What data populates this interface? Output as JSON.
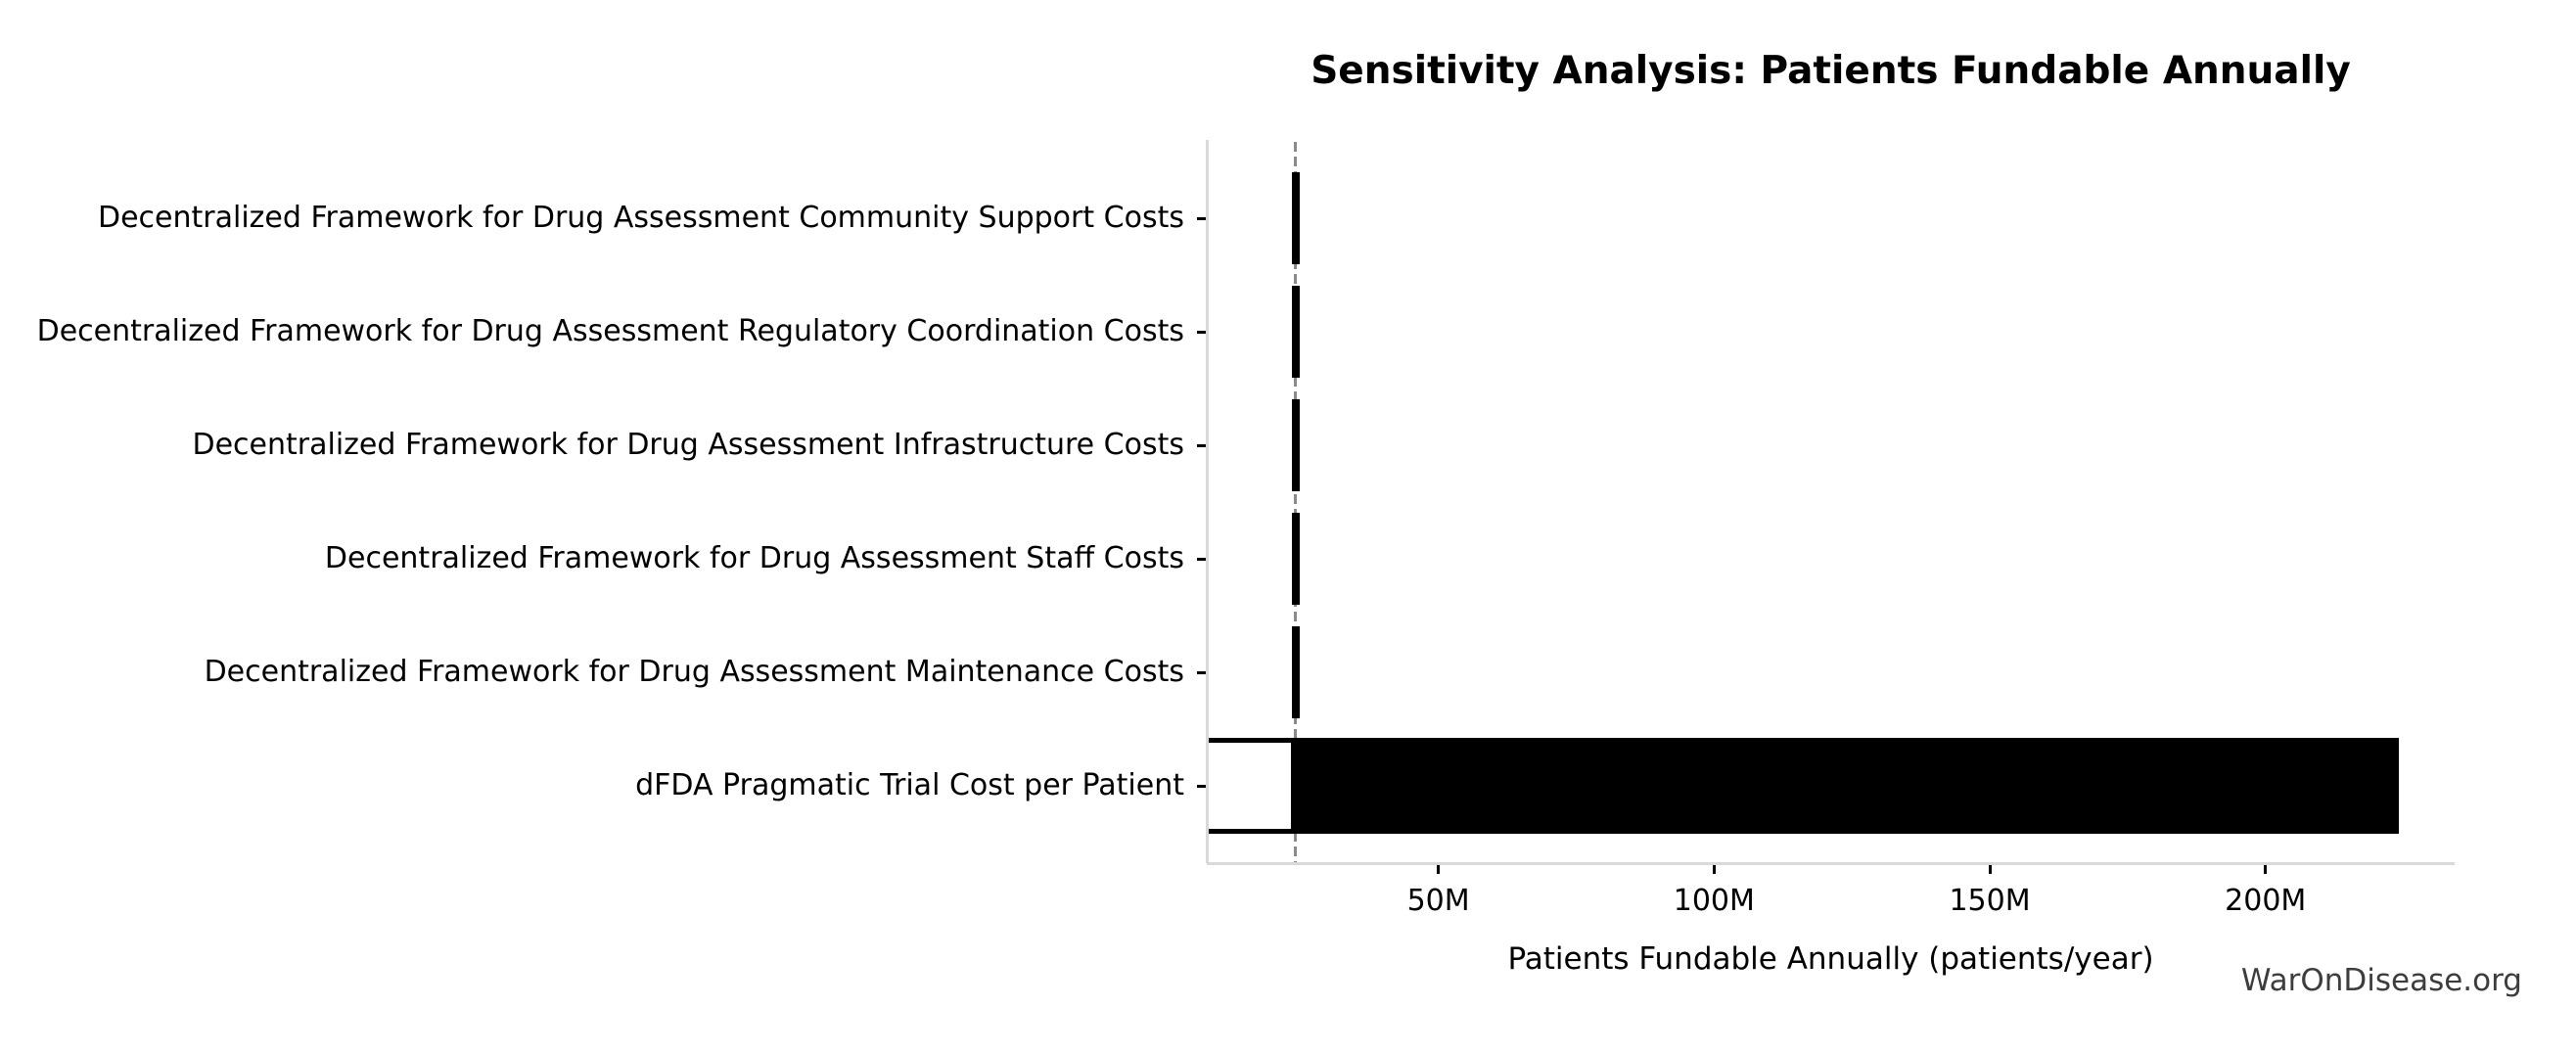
{
  "page": {
    "background": "#ffffff",
    "watermark": "WarOnDisease.org"
  },
  "chart_data": {
    "type": "bar",
    "orientation": "horizontal",
    "subtype": "tornado-sensitivity",
    "title": "Sensitivity Analysis: Patients Fundable Annually",
    "xlabel": "Patients Fundable Annually (patients/year)",
    "ylabel": "",
    "unit": "M",
    "xlim": [
      8.0,
      234.3
    ],
    "baseline": 24.1,
    "grid": false,
    "legend": null,
    "x_ticks": [
      {
        "value": 50,
        "label": "50M"
      },
      {
        "value": 100,
        "label": "100M"
      },
      {
        "value": 150,
        "label": "150M"
      },
      {
        "value": 200,
        "label": "200M"
      }
    ],
    "categories": [
      "Decentralized Framework for Drug Assessment Community Support Costs",
      "Decentralized Framework for Drug Assessment Regulatory Coordination Costs",
      "Decentralized Framework for Drug Assessment Infrastructure Costs",
      "Decentralized Framework for Drug Assessment Staff Costs",
      "Decentralized Framework for Drug Assessment Maintenance Costs",
      "dFDA Pragmatic Trial Cost per Patient"
    ],
    "bars": [
      {
        "category": "Decentralized Framework for Drug Assessment Community Support Costs",
        "low": 23.4,
        "high": 24.8,
        "white_segment": null
      },
      {
        "category": "Decentralized Framework for Drug Assessment Regulatory Coordination Costs",
        "low": 23.4,
        "high": 24.8,
        "white_segment": null
      },
      {
        "category": "Decentralized Framework for Drug Assessment Infrastructure Costs",
        "low": 23.4,
        "high": 24.8,
        "white_segment": null
      },
      {
        "category": "Decentralized Framework for Drug Assessment Staff Costs",
        "low": 23.4,
        "high": 24.8,
        "white_segment": null
      },
      {
        "category": "Decentralized Framework for Drug Assessment Maintenance Costs",
        "low": 23.4,
        "high": 24.8,
        "white_segment": null
      },
      {
        "category": "dFDA Pragmatic Trial Cost per Patient",
        "low": 8.0,
        "high": 224.1,
        "white_segment": {
          "from": 8.0,
          "to": 24.1
        }
      }
    ],
    "colors": {
      "bar": "#000000",
      "white_box_fill": "#ffffff",
      "white_box_edge": "#000000",
      "baseline_line": "#8a8a8a",
      "spine": "#d9d9d9",
      "tick": "#000000",
      "text": "#000000",
      "watermark_text": "#3d3d3d"
    }
  }
}
